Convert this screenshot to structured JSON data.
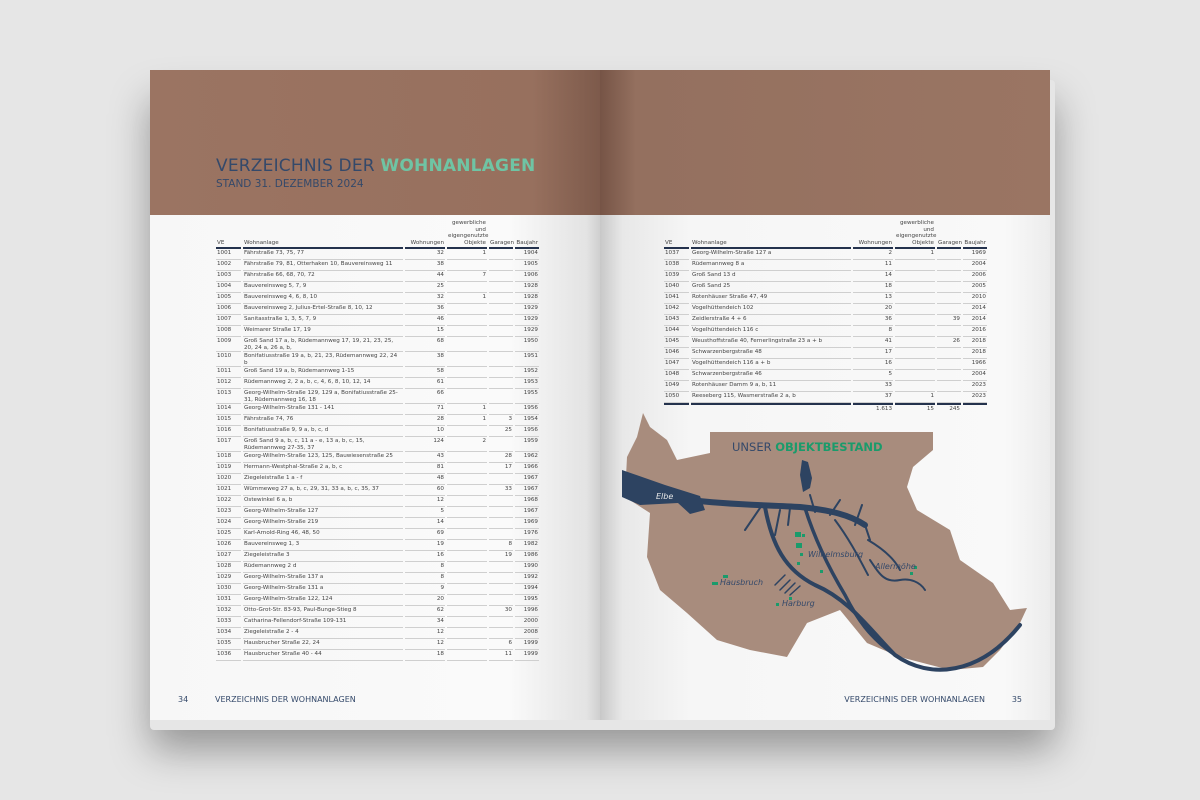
{
  "header": {
    "title_prefix": "VERZEICHNIS DER",
    "title_highlight": "WOHNANLAGEN",
    "subtitle": "STAND 31. DEZEMBER 2024"
  },
  "colors": {
    "band": "#9a7462",
    "title": "#34496a",
    "highlight": "#6fc4a4",
    "map_land": "#a88c7d",
    "map_water": "#2d4361",
    "marker": "#1a9b6b"
  },
  "table_headers": {
    "ve": "VE",
    "wohnanlage": "Wohnanlage",
    "wohnungen": "Wohnungen",
    "gewerbliche": "gewerbliche und eigengenutzte Objekte",
    "garagen": "Garagen",
    "baujahr": "Baujahr"
  },
  "left_rows": [
    [
      "1001",
      "Fährstraße 73, 75, 77",
      "32",
      "1",
      "",
      "1904"
    ],
    [
      "1002",
      "Fährstraße 79, 81, Otterhaken 10, Bauvereinsweg 11",
      "38",
      "",
      "",
      "1905"
    ],
    [
      "1003",
      "Fährstraße 66, 68, 70, 72",
      "44",
      "7",
      "",
      "1906"
    ],
    [
      "1004",
      "Bauvereinsweg 5, 7, 9",
      "25",
      "",
      "",
      "1928"
    ],
    [
      "1005",
      "Bauvereinsweg 4, 6, 8, 10",
      "32",
      "1",
      "",
      "1928"
    ],
    [
      "1006",
      "Bauvereinsweg 2, Julius-Ertel-Straße 8, 10, 12",
      "36",
      "",
      "",
      "1929"
    ],
    [
      "1007",
      "Sanitasstraße 1, 3, 5, 7, 9",
      "46",
      "",
      "",
      "1929"
    ],
    [
      "1008",
      "Weimarer Straße 17, 19",
      "15",
      "",
      "",
      "1929"
    ],
    [
      "1009",
      "Groß Sand 17 a, b, Rüdemannweg 17, 19, 21, 23, 25, 20, 24 a, 26 a, b,",
      "68",
      "",
      "",
      "1950"
    ],
    [
      "1010",
      "Bonifatiusstraße 19 a, b, 21, 23, Rüdemannweg 22, 24 b",
      "38",
      "",
      "",
      "1951"
    ],
    [
      "1011",
      "Groß Sand 19 a, b, Rüdemannweg 1-15",
      "58",
      "",
      "",
      "1952"
    ],
    [
      "1012",
      "Rüdemannweg 2, 2 a, b, c, 4, 6, 8, 10, 12, 14",
      "61",
      "",
      "",
      "1953"
    ],
    [
      "1013",
      "Georg-Wilhelm-Straße 129, 129 a, Bonifatiusstraße 25-31, Rüdemannweg 16, 18",
      "66",
      "",
      "",
      "1955"
    ],
    [
      "1014",
      "Georg-Wilhelm-Straße 131 - 141",
      "71",
      "1",
      "",
      "1956"
    ],
    [
      "1015",
      "Fährstraße 74, 76",
      "28",
      "1",
      "3",
      "1954"
    ],
    [
      "1016",
      "Bonifatiusstraße 9, 9 a, b, c, d",
      "10",
      "",
      "25",
      "1956"
    ],
    [
      "1017",
      "Groß Sand 9 a, b, c, 11 a - e, 13 a, b, c, 15, Rüdemannweg 27-35, 37",
      "124",
      "2",
      "",
      "1959"
    ],
    [
      "1018",
      "Georg-Wilhelm-Straße 123, 125, Bauwiesenstraße 25",
      "43",
      "",
      "28",
      "1962"
    ],
    [
      "1019",
      "Hermann-Westphal-Straße 2 a, b, c",
      "81",
      "",
      "17",
      "1966"
    ],
    [
      "1020",
      "Ziegeleistraße 1 a - f",
      "48",
      "",
      "",
      "1967"
    ],
    [
      "1021",
      "Wümmeweg 27 a, b, c, 29, 31, 33 a, b, c, 35, 37",
      "60",
      "",
      "33",
      "1967"
    ],
    [
      "1022",
      "Ostewinkel 6 a, b",
      "12",
      "",
      "",
      "1968"
    ],
    [
      "1023",
      "Georg-Wilhelm-Straße 127",
      "5",
      "",
      "",
      "1967"
    ],
    [
      "1024",
      "Georg-Wilhelm-Straße 219",
      "14",
      "",
      "",
      "1969"
    ],
    [
      "1025",
      "Karl-Arnold-Ring 46, 48, 50",
      "69",
      "",
      "",
      "1976"
    ],
    [
      "1026",
      "Bauvereinsweg 1, 3",
      "19",
      "",
      "8",
      "1982"
    ],
    [
      "1027",
      "Ziegeleistraße 3",
      "16",
      "",
      "19",
      "1986"
    ],
    [
      "1028",
      "Rüdemannweg 2 d",
      "8",
      "",
      "",
      "1990"
    ],
    [
      "1029",
      "Georg-Wilhelm-Straße 137 a",
      "8",
      "",
      "",
      "1992"
    ],
    [
      "1030",
      "Georg-Wilhelm-Straße 131 a",
      "9",
      "",
      "",
      "1994"
    ],
    [
      "1031",
      "Georg-Wilhelm-Straße 122, 124",
      "20",
      "",
      "",
      "1995"
    ],
    [
      "1032",
      "Otto-Grot-Str. 83-93, Paul-Bunge-Stieg 8",
      "62",
      "",
      "30",
      "1996"
    ],
    [
      "1033",
      "Catharina-Fellendorf-Straße 109-131",
      "34",
      "",
      "",
      "2000"
    ],
    [
      "1034",
      "Ziegeleistraße 2 - 4",
      "12",
      "",
      "",
      "2008"
    ],
    [
      "1035",
      "Hausbrucher Straße 22, 24",
      "12",
      "",
      "6",
      "1999"
    ],
    [
      "1036",
      "Hausbrucher Straße 40 - 44",
      "18",
      "",
      "11",
      "1999"
    ]
  ],
  "right_rows": [
    [
      "1037",
      "Georg-Wilhelm-Straße 127 a",
      "2",
      "1",
      "",
      "1969"
    ],
    [
      "1038",
      "Rüdemannweg 8 a",
      "11",
      "",
      "",
      "2004"
    ],
    [
      "1039",
      "Groß Sand 13 d",
      "14",
      "",
      "",
      "2006"
    ],
    [
      "1040",
      "Groß Sand 25",
      "18",
      "",
      "",
      "2005"
    ],
    [
      "1041",
      "Rotenhäuser Straße 47, 49",
      "13",
      "",
      "",
      "2010"
    ],
    [
      "1042",
      "Vogelhüttendeich 102",
      "20",
      "",
      "",
      "2014"
    ],
    [
      "1043",
      "Zeidlerstraße 4 + 6",
      "36",
      "",
      "39",
      "2014"
    ],
    [
      "1044",
      "Vogelhüttendeich 116 c",
      "8",
      "",
      "",
      "2016"
    ],
    [
      "1045",
      "Weusthoffstraße 40, Fernerlingstraße 23 a + b",
      "41",
      "",
      "26",
      "2018"
    ],
    [
      "1046",
      "Schwarzenbergstraße 48",
      "17",
      "",
      "",
      "2018"
    ],
    [
      "1047",
      "Vogelhüttendeich 116 a + b",
      "16",
      "",
      "",
      "1966"
    ],
    [
      "1048",
      "Schwarzenbergstraße 46",
      "5",
      "",
      "",
      "2004"
    ],
    [
      "1049",
      "Rotenhäuser Damm 9 a, b, 11",
      "33",
      "",
      "",
      "2023"
    ],
    [
      "1050",
      "Reeseberg 115, Wasmerstraße 2 a, b",
      "37",
      "1",
      "",
      "2023"
    ]
  ],
  "totals": {
    "wohnungen": "1.613",
    "gewerbliche": "15",
    "garagen": "245"
  },
  "map": {
    "title_prefix": "UNSER",
    "title_highlight": "OBJEKTBESTAND",
    "labels": {
      "elbe": "Elbe",
      "wilhelmsburg": "Wilhelmsburg",
      "hausbruch": "Hausbruch",
      "harburg": "Harburg",
      "allermoehe": "Allermöhe"
    }
  },
  "footer": {
    "left_page_number": "34",
    "left_running_title": "VERZEICHNIS DER WOHNANLAGEN",
    "right_running_title": "VERZEICHNIS DER WOHNANLAGEN",
    "right_page_number": "35"
  }
}
